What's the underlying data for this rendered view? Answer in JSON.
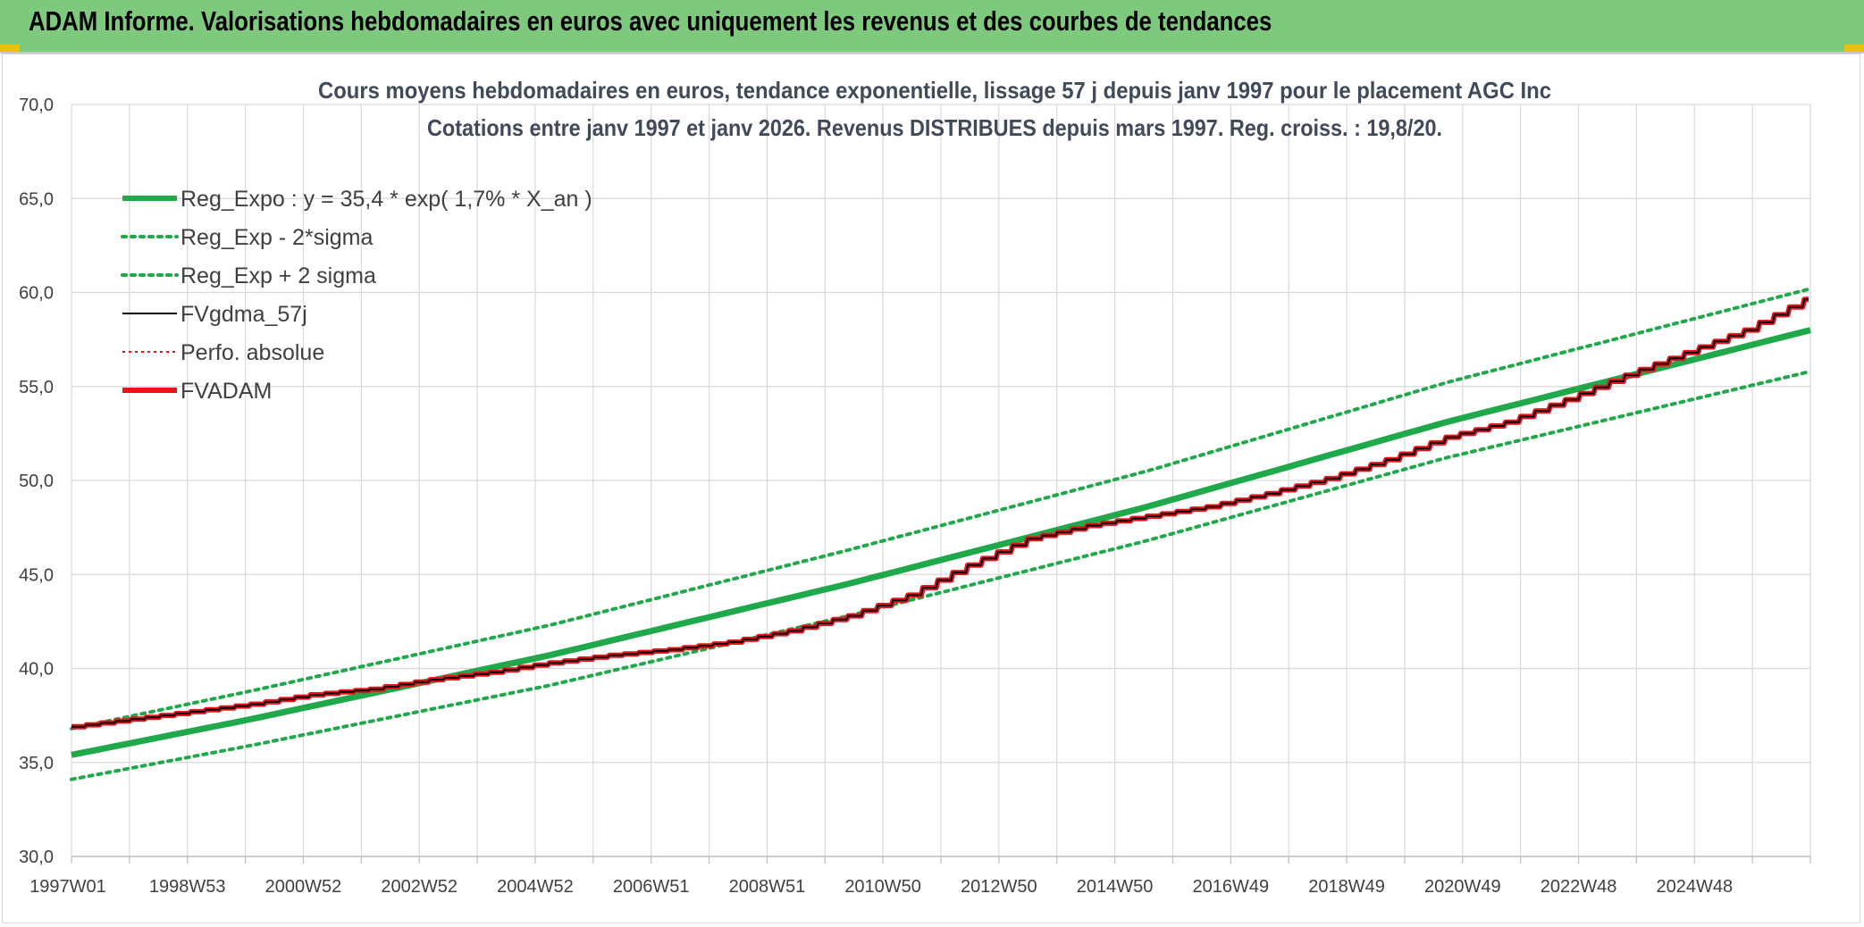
{
  "header": {
    "title": "ADAM Informe. Valorisations hebdomadaires en euros avec uniquement les revenus et des courbes de tendances"
  },
  "colors": {
    "banner": "#7fc97f",
    "reg_expo": "#1fa94b",
    "fvgdma": "#000000",
    "fvadam": "#e8141c",
    "perfo": "#e8141c",
    "grid": "#d9d9d9"
  },
  "chart_data": {
    "type": "line",
    "title": "Cours moyens hebdomadaires en euros, tendance exponentielle, lissage 57 j depuis janv 1997 pour le placement AGC Inc",
    "subtitle": "Cotations entre janv 1997 et janv 2026. Revenus DISTRIBUES depuis mars 1997. Reg. croiss. : 19,8/20.",
    "xlabel": "",
    "ylabel": "",
    "ylim": [
      30,
      70
    ],
    "y_ticks": [
      "30,0",
      "35,0",
      "40,0",
      "45,0",
      "50,0",
      "55,0",
      "60,0",
      "65,0",
      "70,0"
    ],
    "x_ticks": [
      "1997W01",
      "1998W53",
      "2000W52",
      "2002W52",
      "2004W52",
      "2006W51",
      "2008W51",
      "2010W50",
      "2012W50",
      "2014W50",
      "2016W49",
      "2018W49",
      "2020W49",
      "2022W48",
      "2024W48"
    ],
    "x_range_years": [
      1997.0,
      2026.1
    ],
    "grid": true,
    "legend_position": "top-left",
    "series": [
      {
        "name": "Reg_Expo : y = 35,4 * exp( 1,7% *  X_an )",
        "style": "solid-thick",
        "color": "#1fa94b",
        "x": [
          1997.0,
          2000.0,
          2005.0,
          2010.0,
          2015.0,
          2020.0,
          2026.1
        ],
        "values": [
          35.4,
          37.3,
          40.7,
          44.5,
          48.6,
          53.1,
          58.0
        ]
      },
      {
        "name": "Reg_Exp - 2*sigma",
        "style": "dotted",
        "color": "#1fa94b",
        "x": [
          1997.0,
          2000.0,
          2005.0,
          2010.0,
          2015.0,
          2020.0,
          2026.1
        ],
        "values": [
          34.1,
          35.9,
          39.1,
          42.8,
          46.8,
          51.2,
          55.8
        ]
      },
      {
        "name": "Reg_Exp + 2 sigma",
        "style": "dotted",
        "color": "#1fa94b",
        "x": [
          1997.0,
          2000.0,
          2005.0,
          2010.0,
          2015.0,
          2020.0,
          2026.1
        ],
        "values": [
          36.8,
          38.8,
          42.3,
          46.3,
          50.5,
          55.2,
          60.2
        ]
      },
      {
        "name": "FVgdma_57j",
        "style": "solid-thin",
        "color": "#000000",
        "x": [
          1997.0,
          1998.0,
          1999.0,
          2000.0,
          2001.0,
          2002.0,
          2003.0,
          2004.0,
          2005.0,
          2006.0,
          2007.0,
          2008.0,
          2009.0,
          2010.0,
          2011.0,
          2012.0,
          2013.0,
          2014.0,
          2015.0,
          2016.0,
          2017.0,
          2018.0,
          2019.0,
          2020.0,
          2021.0,
          2022.0,
          2023.0,
          2024.0,
          2025.0,
          2026.1
        ],
        "values": [
          36.9,
          37.3,
          37.7,
          38.1,
          38.6,
          38.9,
          39.4,
          39.8,
          40.3,
          40.7,
          41.0,
          41.4,
          42.0,
          42.8,
          43.9,
          45.5,
          46.9,
          47.6,
          48.1,
          48.6,
          49.3,
          50.1,
          51.1,
          52.3,
          53.1,
          54.3,
          55.6,
          56.8,
          58.0,
          59.8
        ]
      },
      {
        "name": "Perfo. absolue",
        "style": "dotted-thin",
        "color": "#e8141c",
        "x": [
          1997.0,
          1998.0,
          1999.0,
          2000.0,
          2001.0,
          2002.0,
          2003.0,
          2004.0,
          2005.0,
          2006.0,
          2007.0,
          2008.0,
          2009.0,
          2010.0,
          2011.0,
          2012.0,
          2013.0,
          2014.0,
          2015.0,
          2016.0,
          2017.0,
          2018.0,
          2019.0,
          2020.0,
          2021.0,
          2022.0,
          2023.0,
          2024.0,
          2025.0,
          2026.1
        ],
        "values": [
          36.9,
          37.3,
          37.7,
          38.1,
          38.6,
          38.9,
          39.4,
          39.8,
          40.3,
          40.7,
          41.0,
          41.4,
          42.0,
          42.8,
          43.9,
          45.5,
          46.9,
          47.6,
          48.1,
          48.6,
          49.3,
          50.1,
          51.1,
          52.3,
          53.1,
          54.3,
          55.6,
          56.8,
          58.0,
          59.8
        ]
      },
      {
        "name": "FVADAM",
        "style": "solid-thick",
        "color": "#e8141c",
        "x": [
          1997.0,
          1998.0,
          1999.0,
          2000.0,
          2001.0,
          2002.0,
          2003.0,
          2004.0,
          2005.0,
          2006.0,
          2007.0,
          2008.0,
          2009.0,
          2010.0,
          2011.0,
          2012.0,
          2013.0,
          2014.0,
          2015.0,
          2016.0,
          2017.0,
          2018.0,
          2019.0,
          2020.0,
          2021.0,
          2022.0,
          2023.0,
          2024.0,
          2025.0,
          2026.1
        ],
        "values": [
          36.9,
          37.3,
          37.7,
          38.1,
          38.6,
          38.9,
          39.4,
          39.8,
          40.3,
          40.7,
          41.0,
          41.4,
          42.0,
          42.8,
          43.9,
          45.5,
          46.9,
          47.6,
          48.1,
          48.6,
          49.3,
          50.1,
          51.1,
          52.3,
          53.1,
          54.3,
          55.6,
          56.8,
          58.0,
          59.8
        ]
      }
    ]
  }
}
